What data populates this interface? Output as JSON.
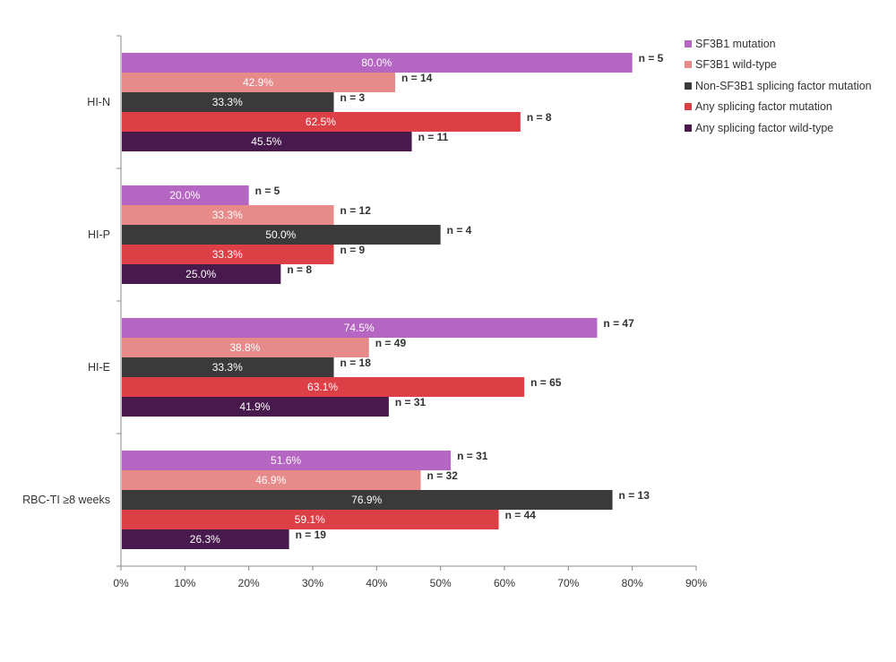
{
  "chart_data": {
    "type": "bar",
    "orientation": "horizontal",
    "title": "",
    "xlabel": "",
    "ylabel": "",
    "xlim": [
      0,
      90
    ],
    "x_ticks": [
      "0%",
      "10%",
      "20%",
      "30%",
      "40%",
      "50%",
      "60%",
      "70%",
      "80%",
      "90%"
    ],
    "grid": false,
    "legend_position": "top-right",
    "categories": [
      "HI-N",
      "HI-P",
      "HI-E",
      "RBC-TI ≥8 weeks"
    ],
    "series": [
      {
        "name": "SF3B1 mutation",
        "color": "#b565c2",
        "values": [
          80.0,
          20.0,
          74.5,
          51.6
        ],
        "n": [
          "n = 5",
          "n = 5",
          "n = 47",
          "n = 31"
        ]
      },
      {
        "name": "SF3B1 wild-type",
        "color": "#e78a8a",
        "values": [
          42.9,
          33.3,
          38.8,
          46.9
        ],
        "n": [
          "n = 14",
          "n = 12",
          "n = 49",
          "n = 32"
        ]
      },
      {
        "name": "Non-SF3B1 splicing factor mutation",
        "color": "#3a3a3a",
        "values": [
          33.3,
          50.0,
          33.3,
          76.9
        ],
        "n": [
          "n = 3",
          "n = 4",
          "n = 18",
          "n = 13"
        ]
      },
      {
        "name": "Any splicing factor mutation",
        "color": "#dc3f45",
        "values": [
          62.5,
          33.3,
          63.1,
          59.1
        ],
        "n": [
          "n = 8",
          "n = 9",
          "n = 65",
          "n = 44"
        ]
      },
      {
        "name": "Any splicing factor wild-type",
        "color": "#47194d",
        "values": [
          45.5,
          25.0,
          41.9,
          26.3
        ],
        "n": [
          "n = 11",
          "n = 8",
          "n = 31",
          "n = 19"
        ]
      }
    ],
    "value_suffix": "%"
  }
}
